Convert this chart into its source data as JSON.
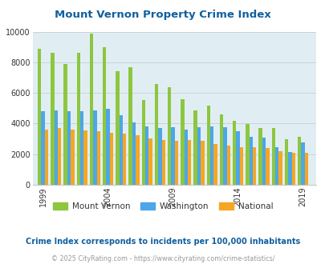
{
  "title": "Mount Vernon Property Crime Index",
  "title_color": "#1060a0",
  "years": [
    1999,
    2000,
    2001,
    2002,
    2003,
    2004,
    2005,
    2006,
    2007,
    2008,
    2009,
    2010,
    2011,
    2012,
    2013,
    2014,
    2015,
    2016,
    2017,
    2018,
    2019
  ],
  "mount_vernon": [
    8900,
    8600,
    7900,
    8600,
    9900,
    9000,
    7400,
    7700,
    5550,
    6600,
    6400,
    5600,
    4850,
    5150,
    4600,
    4200,
    3950,
    3700,
    3700,
    3000,
    3150
  ],
  "washington": [
    4800,
    4850,
    4800,
    4800,
    4850,
    4950,
    4550,
    4100,
    3800,
    3700,
    3750,
    3600,
    3750,
    3800,
    3750,
    3500,
    3150,
    3100,
    2450,
    2150,
    2750
  ],
  "national": [
    3600,
    3700,
    3600,
    3550,
    3500,
    3400,
    3350,
    3250,
    3050,
    2950,
    2850,
    2900,
    2850,
    2650,
    2550,
    2450,
    2450,
    2400,
    2200,
    2100,
    2100
  ],
  "mv_color": "#8dc63f",
  "wa_color": "#4da6e8",
  "nat_color": "#f5a623",
  "bg_color": "#e0eef3",
  "ylim": [
    0,
    10000
  ],
  "yticks": [
    0,
    2000,
    4000,
    6000,
    8000,
    10000
  ],
  "xtick_years": [
    1999,
    2004,
    2009,
    2014,
    2019
  ],
  "legend_labels": [
    "Mount Vernon",
    "Washington",
    "National"
  ],
  "footnote1": "Crime Index corresponds to incidents per 100,000 inhabitants",
  "footnote2": "© 2025 CityRating.com - https://www.cityrating.com/crime-statistics/",
  "footnote1_color": "#1060a0",
  "footnote2_color": "#999999",
  "bar_width": 0.27
}
